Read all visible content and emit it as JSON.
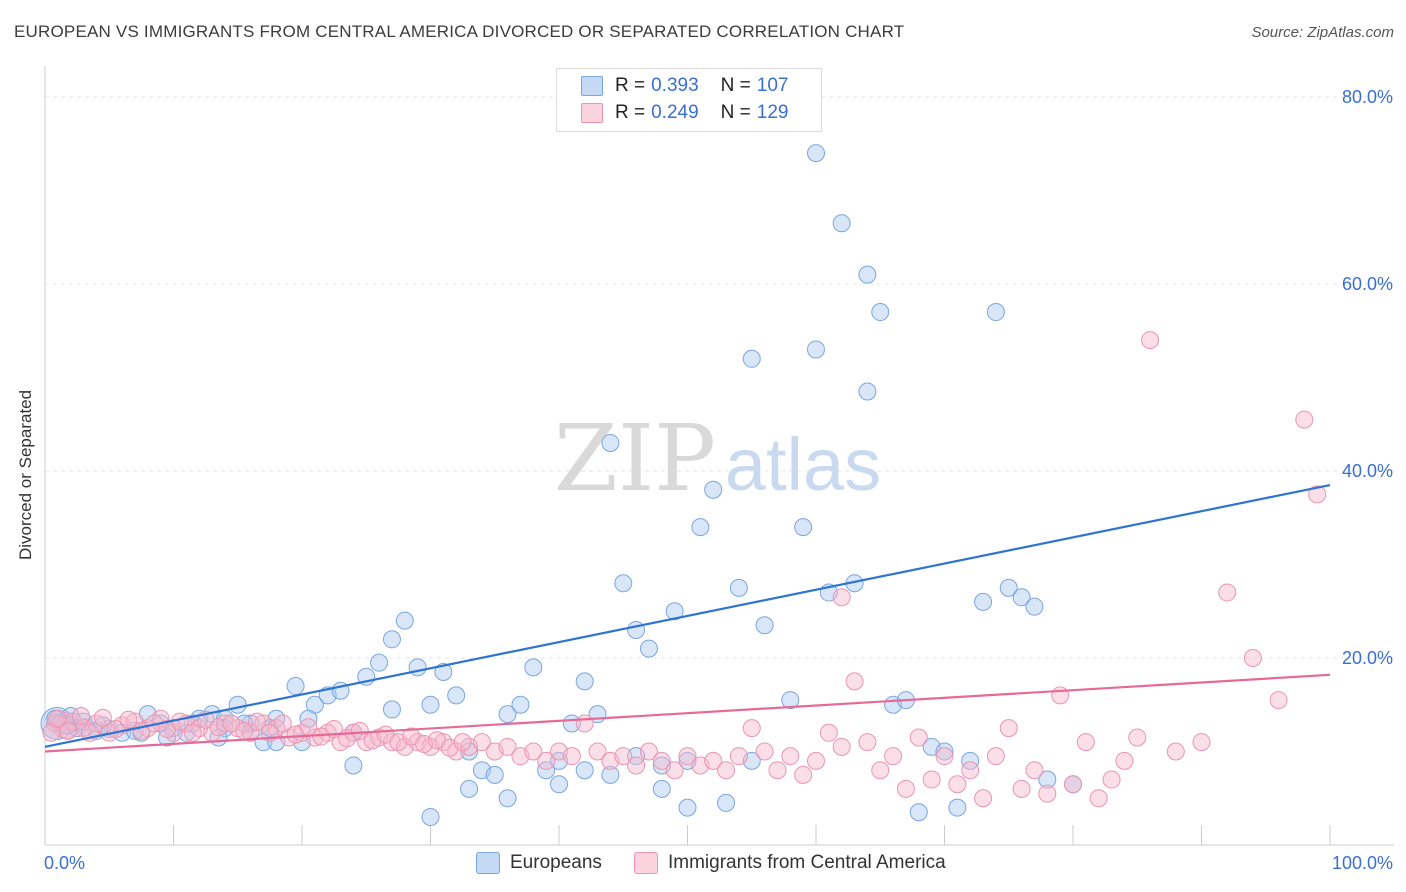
{
  "title": "EUROPEAN VS IMMIGRANTS FROM CENTRAL AMERICA DIVORCED OR SEPARATED CORRELATION CHART",
  "source": "Source: ZipAtlas.com",
  "watermark": {
    "zip": "ZIP",
    "atlas": "atlas"
  },
  "legend_top": {
    "rows": [
      {
        "r_label": "R =",
        "r_value": "0.393",
        "n_label": "N =",
        "n_value": "107",
        "color": "#a8c8f0"
      },
      {
        "r_label": "R =",
        "r_value": "0.249",
        "n_label": "N =",
        "n_value": "129",
        "color": "#f6b8cc"
      }
    ]
  },
  "legend_bottom": [
    {
      "label": "Europeans",
      "color": "#a8c8f0"
    },
    {
      "label": "Immigrants from Central America",
      "color": "#f6b8cc"
    }
  ],
  "chart_data": {
    "type": "scatter",
    "xlabel": "",
    "ylabel": "Divorced or Separated",
    "xlim": [
      0,
      100
    ],
    "ylim": [
      0,
      80
    ],
    "x_tick_labels": [
      "0.0%",
      "100.0%"
    ],
    "y_ticks": [
      20,
      40,
      60,
      80
    ],
    "y_tick_labels": [
      "20.0%",
      "40.0%",
      "60.0%",
      "80.0%"
    ],
    "grid": true,
    "series": [
      {
        "name": "Europeans",
        "color": "#a8c8f0",
        "edge": "#7aa6e0",
        "trend_color": "#2f74d0",
        "trend": [
          [
            0,
            10.5
          ],
          [
            100,
            38.5
          ]
        ],
        "points": [
          [
            0.8,
            13.5
          ],
          [
            1.2,
            13.0
          ],
          [
            1.8,
            12.8
          ],
          [
            2.5,
            12.5
          ],
          [
            3.2,
            12.6
          ],
          [
            4,
            12.2
          ],
          [
            5,
            12.4
          ],
          [
            6,
            12.0
          ],
          [
            7,
            12.2
          ],
          [
            8,
            14.0
          ],
          [
            9,
            13.0
          ],
          [
            10,
            12.5
          ],
          [
            11,
            12.0
          ],
          [
            12,
            13.5
          ],
          [
            13,
            14.0
          ],
          [
            14,
            13.5
          ],
          [
            15,
            15.0
          ],
          [
            16,
            12.0
          ],
          [
            17,
            11.0
          ],
          [
            18,
            13.5
          ],
          [
            19.5,
            17.0
          ],
          [
            20,
            11.0
          ],
          [
            21,
            15.0
          ],
          [
            22,
            16.0
          ],
          [
            23,
            16.5
          ],
          [
            24,
            12.0
          ],
          [
            25,
            18.0
          ],
          [
            26,
            19.5
          ],
          [
            27,
            22.0
          ],
          [
            28,
            24.0
          ],
          [
            29,
            19.0
          ],
          [
            30,
            15.0
          ],
          [
            31,
            18.5
          ],
          [
            32,
            16.0
          ],
          [
            33,
            10.0
          ],
          [
            34,
            8.0
          ],
          [
            35,
            7.5
          ],
          [
            36,
            14.0
          ],
          [
            37,
            15.0
          ],
          [
            38,
            19.0
          ],
          [
            39,
            8.0
          ],
          [
            40,
            9.0
          ],
          [
            41,
            13.0
          ],
          [
            42,
            17.5
          ],
          [
            43,
            14.0
          ],
          [
            44,
            43.0
          ],
          [
            45,
            28.0
          ],
          [
            46,
            23.0
          ],
          [
            47,
            21.0
          ],
          [
            48,
            8.5
          ],
          [
            49,
            25.0
          ],
          [
            50,
            4.0
          ],
          [
            51,
            34.0
          ],
          [
            52,
            38.0
          ],
          [
            53,
            4.5
          ],
          [
            54,
            27.5
          ],
          [
            55,
            52.0
          ],
          [
            56,
            23.5
          ],
          [
            58,
            15.5
          ],
          [
            59,
            34.0
          ],
          [
            60,
            53.0
          ],
          [
            61,
            27.0
          ],
          [
            62,
            66.5
          ],
          [
            63,
            28.0
          ],
          [
            64,
            48.5
          ],
          [
            65,
            57.0
          ],
          [
            66,
            15.0
          ],
          [
            67,
            15.5
          ],
          [
            68,
            3.5
          ],
          [
            69,
            10.5
          ],
          [
            70,
            10.0
          ],
          [
            71,
            4.0
          ],
          [
            72,
            9.0
          ],
          [
            73,
            26.0
          ],
          [
            74,
            57.0
          ],
          [
            75,
            27.5
          ],
          [
            76,
            26.5
          ],
          [
            77,
            25.5
          ],
          [
            78,
            7.0
          ],
          [
            80,
            6.5
          ],
          [
            60,
            74.0
          ],
          [
            64,
            61.0
          ],
          [
            2,
            13.8
          ],
          [
            3,
            13.2
          ],
          [
            4.5,
            12.8
          ],
          [
            14,
            12.5
          ],
          [
            16,
            13.0
          ],
          [
            18,
            11.0
          ],
          [
            24,
            8.5
          ],
          [
            27,
            14.5
          ],
          [
            30,
            3.0
          ],
          [
            33,
            6.0
          ],
          [
            36,
            5.0
          ],
          [
            40,
            6.5
          ],
          [
            42,
            8.0
          ],
          [
            44,
            7.5
          ],
          [
            46,
            9.5
          ],
          [
            48,
            6.0
          ],
          [
            50,
            9.0
          ],
          [
            55,
            9.0
          ],
          [
            7.5,
            12.0
          ],
          [
            9.5,
            11.5
          ],
          [
            11.5,
            13.0
          ],
          [
            13.5,
            11.5
          ],
          [
            15.5,
            13.0
          ],
          [
            17.5,
            12.5
          ],
          [
            20.5,
            13.5
          ]
        ]
      },
      {
        "name": "Immigrants from Central America",
        "color": "#f6b8cc",
        "edge": "#ec94b2",
        "trend_color": "#e66a97",
        "trend": [
          [
            0,
            10.0
          ],
          [
            100,
            18.2
          ]
        ],
        "points": [
          [
            0.8,
            13.0
          ],
          [
            1.5,
            12.8
          ],
          [
            2.2,
            13.2
          ],
          [
            3,
            12.5
          ],
          [
            4,
            13.0
          ],
          [
            5,
            12.0
          ],
          [
            6,
            12.8
          ],
          [
            7,
            13.2
          ],
          [
            8,
            12.5
          ],
          [
            9,
            13.5
          ],
          [
            10,
            12.0
          ],
          [
            11,
            13.0
          ],
          [
            12,
            12.5
          ],
          [
            13,
            12.0
          ],
          [
            14,
            13.0
          ],
          [
            15,
            12.5
          ],
          [
            16,
            12.0
          ],
          [
            17,
            13.0
          ],
          [
            18,
            12.5
          ],
          [
            19,
            11.5
          ],
          [
            20,
            12.0
          ],
          [
            21,
            11.5
          ],
          [
            22,
            12.0
          ],
          [
            23,
            11.0
          ],
          [
            24,
            12.0
          ],
          [
            25,
            11.0
          ],
          [
            26,
            11.5
          ],
          [
            27,
            11.0
          ],
          [
            28,
            10.5
          ],
          [
            29,
            11.0
          ],
          [
            30,
            10.5
          ],
          [
            31,
            11.0
          ],
          [
            32,
            10.0
          ],
          [
            33,
            10.5
          ],
          [
            34,
            11.0
          ],
          [
            35,
            10.0
          ],
          [
            36,
            10.5
          ],
          [
            37,
            9.5
          ],
          [
            38,
            10.0
          ],
          [
            39,
            9.0
          ],
          [
            40,
            10.0
          ],
          [
            41,
            9.5
          ],
          [
            42,
            13.0
          ],
          [
            43,
            10.0
          ],
          [
            44,
            9.0
          ],
          [
            45,
            9.5
          ],
          [
            46,
            8.5
          ],
          [
            47,
            10.0
          ],
          [
            48,
            9.0
          ],
          [
            49,
            8.0
          ],
          [
            50,
            9.5
          ],
          [
            51,
            8.5
          ],
          [
            52,
            9.0
          ],
          [
            53,
            8.0
          ],
          [
            54,
            9.5
          ],
          [
            55,
            12.5
          ],
          [
            56,
            10.0
          ],
          [
            57,
            8.0
          ],
          [
            58,
            9.5
          ],
          [
            59,
            7.5
          ],
          [
            60,
            9.0
          ],
          [
            61,
            12.0
          ],
          [
            62,
            10.5
          ],
          [
            63,
            17.5
          ],
          [
            64,
            11.0
          ],
          [
            65,
            8.0
          ],
          [
            66,
            9.5
          ],
          [
            67,
            6.0
          ],
          [
            68,
            11.5
          ],
          [
            69,
            7.0
          ],
          [
            70,
            9.5
          ],
          [
            71,
            6.5
          ],
          [
            72,
            8.0
          ],
          [
            73,
            5.0
          ],
          [
            74,
            9.5
          ],
          [
            75,
            12.5
          ],
          [
            76,
            6.0
          ],
          [
            77,
            8.0
          ],
          [
            78,
            5.5
          ],
          [
            79,
            16.0
          ],
          [
            80,
            6.5
          ],
          [
            81,
            11.0
          ],
          [
            82,
            5.0
          ],
          [
            83,
            7.0
          ],
          [
            84,
            9.0
          ],
          [
            85,
            11.5
          ],
          [
            86,
            54.0
          ],
          [
            88,
            10.0
          ],
          [
            90,
            11.0
          ],
          [
            92,
            27.0
          ],
          [
            94,
            20.0
          ],
          [
            96,
            15.5
          ],
          [
            98,
            45.5
          ],
          [
            99,
            37.5
          ],
          [
            62,
            26.5
          ],
          [
            0.5,
            12.0
          ],
          [
            1,
            13.5
          ],
          [
            1.8,
            12.2
          ],
          [
            2.8,
            13.8
          ],
          [
            3.5,
            12.0
          ],
          [
            4.5,
            13.6
          ],
          [
            5.5,
            12.4
          ],
          [
            6.5,
            13.4
          ],
          [
            7.5,
            12.2
          ],
          [
            8.5,
            13.0
          ],
          [
            9.5,
            12.4
          ],
          [
            10.5,
            13.2
          ],
          [
            11.5,
            12.0
          ],
          [
            12.5,
            13.4
          ],
          [
            13.5,
            12.6
          ],
          [
            14.5,
            13.0
          ],
          [
            15.5,
            12.2
          ],
          [
            16.5,
            13.2
          ],
          [
            17.5,
            12.0
          ],
          [
            18.5,
            13.0
          ],
          [
            19.5,
            11.8
          ],
          [
            20.5,
            12.6
          ],
          [
            21.5,
            11.6
          ],
          [
            22.5,
            12.4
          ],
          [
            23.5,
            11.4
          ],
          [
            24.5,
            12.2
          ],
          [
            25.5,
            11.2
          ],
          [
            26.5,
            11.8
          ],
          [
            27.5,
            11.0
          ],
          [
            28.5,
            11.6
          ],
          [
            29.5,
            10.8
          ],
          [
            30.5,
            11.2
          ],
          [
            31.5,
            10.4
          ],
          [
            32.5,
            11.0
          ]
        ]
      }
    ]
  }
}
